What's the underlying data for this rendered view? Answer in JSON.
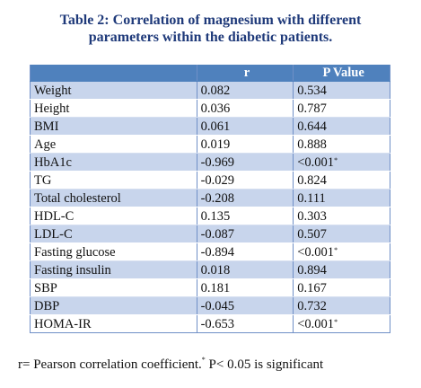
{
  "title": {
    "line1": "Table 2: Correlation of magnesium with different",
    "line2": "parameters within the diabetic patients."
  },
  "table": {
    "headers": [
      "",
      "r",
      "P Value"
    ],
    "rows": [
      {
        "param": "Weight",
        "r": "0.082",
        "p": "0.534",
        "sig": ""
      },
      {
        "param": "Height",
        "r": "0.036",
        "p": "0.787",
        "sig": ""
      },
      {
        "param": "BMI",
        "r": "0.061",
        "p": "0.644",
        "sig": ""
      },
      {
        "param": "Age",
        "r": "0.019",
        "p": "0.888",
        "sig": ""
      },
      {
        "param": "HbA1c",
        "r": "-0.969",
        "p": "<0.001",
        "sig": "*"
      },
      {
        "param": "TG",
        "r": "-0.029",
        "p": "0.824",
        "sig": ""
      },
      {
        "param": "Total cholesterol",
        "r": "-0.208",
        "p": "0.111",
        "sig": ""
      },
      {
        "param": "HDL-C",
        "r": "0.135",
        "p": "0.303",
        "sig": ""
      },
      {
        "param": "LDL-C",
        "r": "-0.087",
        "p": "0.507",
        "sig": ""
      },
      {
        "param": "Fasting glucose",
        "r": "-0.894",
        "p": "<0.001",
        "sig": "*"
      },
      {
        "param": "Fasting insulin",
        "r": "0.018",
        "p": "0.894",
        "sig": ""
      },
      {
        "param": "SBP",
        "r": "0.181",
        "p": "0.167",
        "sig": ""
      },
      {
        "param": "DBP",
        "r": "-0.045",
        "p": "0.732",
        "sig": ""
      },
      {
        "param": "HOMA-IR",
        "r": "-0.653",
        "p": "<0.001",
        "sig": "*"
      }
    ]
  },
  "footnote": {
    "part1": "r= Pearson correlation coefficient.",
    "sup": "*",
    "part2": " P< 0.05 is significant"
  },
  "colors": {
    "header_bg": "#4f81bd",
    "band_bg": "#c8d5ec",
    "title_color": "#1f3a7a"
  }
}
